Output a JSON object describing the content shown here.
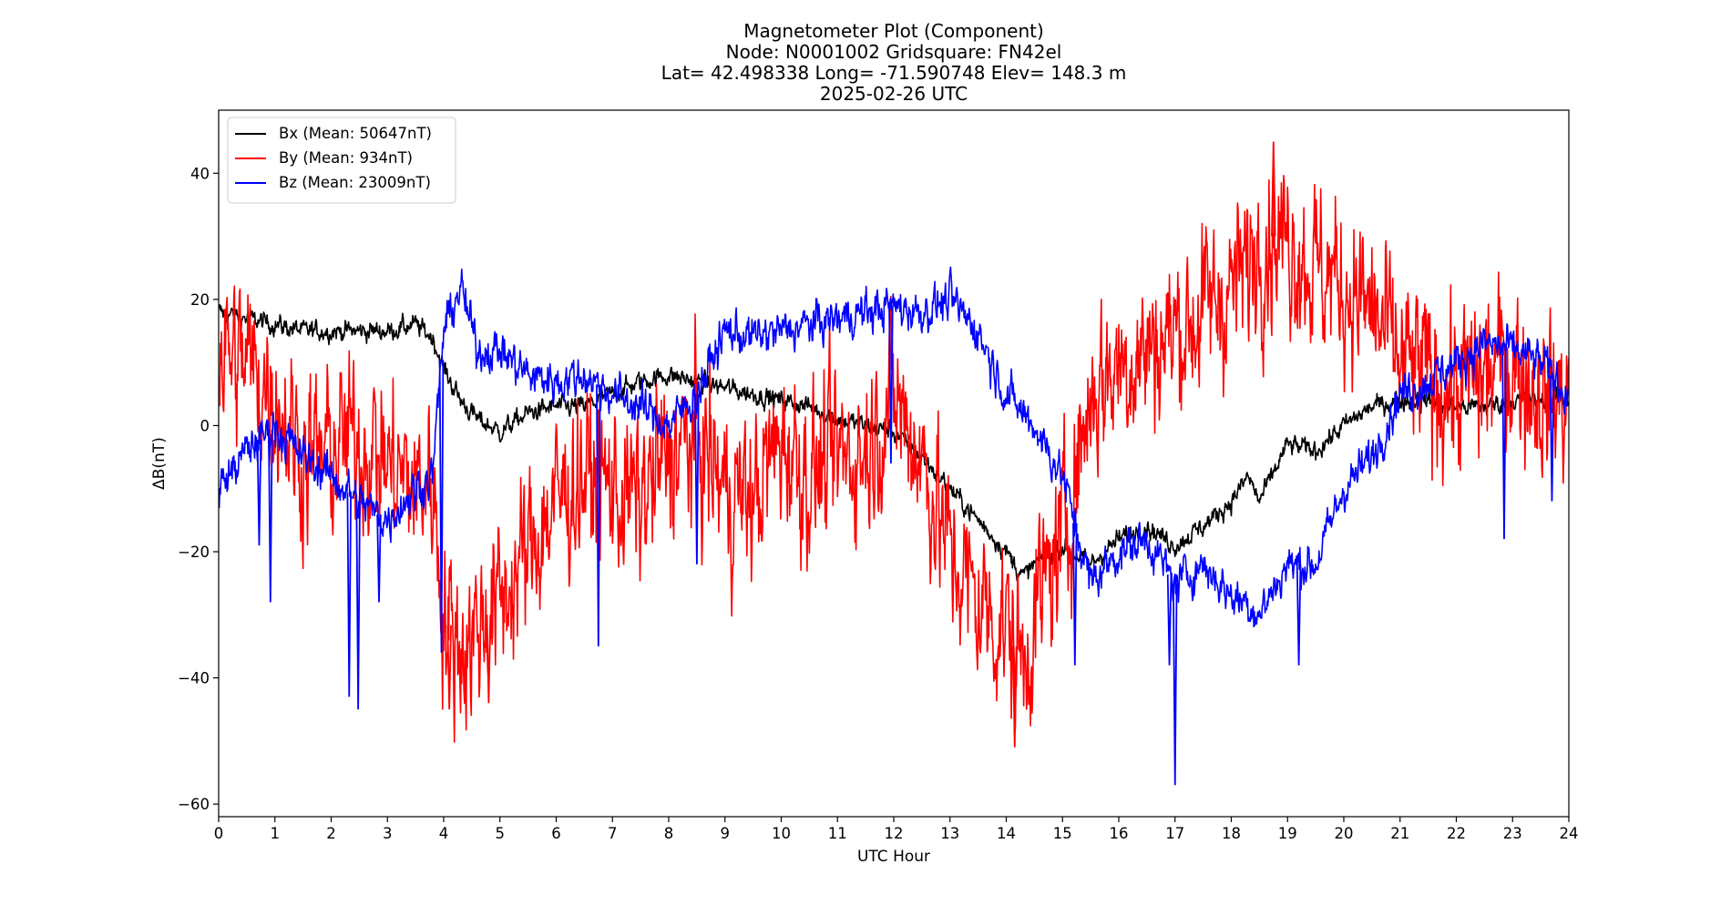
{
  "chart_data": {
    "type": "line",
    "title_lines": [
      "Magnetometer Plot (Component)",
      "Node:  N0001002     Gridsquare:  FN42el",
      "Lat= 42.498338    Long= -71.590748    Elev= 148.3 m",
      "2025-02-26  UTC"
    ],
    "xlabel": "UTC Hour",
    "ylabel": "ΔB(nT)",
    "xlim": [
      0,
      24
    ],
    "ylim": [
      -62,
      50
    ],
    "xticks": [
      0,
      1,
      2,
      3,
      4,
      5,
      6,
      7,
      8,
      9,
      10,
      11,
      12,
      13,
      14,
      15,
      16,
      17,
      18,
      19,
      20,
      21,
      22,
      23,
      24
    ],
    "yticks": [
      -60,
      -40,
      -20,
      0,
      20,
      40
    ],
    "ytick_labels": [
      "−60",
      "−40",
      "−20",
      "0",
      "20",
      "40"
    ],
    "grid": false,
    "legend": {
      "placement": "top-left"
    },
    "series": [
      {
        "name": "Bx (Mean: 50647nT)",
        "color": "#000000",
        "noise": 1.2,
        "x": [
          0,
          0.5,
          1,
          1.5,
          2,
          2.5,
          3,
          3.5,
          3.8,
          4,
          4.3,
          4.6,
          5,
          5.5,
          6,
          6.5,
          7,
          7.5,
          8,
          8.5,
          9,
          9.5,
          10,
          10.5,
          11,
          11.5,
          12,
          12.5,
          13,
          13.5,
          14,
          14.3,
          14.5,
          15,
          15.5,
          16,
          16.5,
          17,
          17.5,
          18,
          18.3,
          18.5,
          19,
          19.5,
          20,
          20.5,
          21,
          21.5,
          22,
          22.5,
          23,
          23.5,
          24
        ],
        "y": [
          18,
          17,
          16,
          15,
          15,
          15,
          15,
          16,
          14,
          9,
          4,
          1,
          -1,
          2,
          3,
          3,
          5,
          7,
          8,
          7,
          6,
          5,
          4,
          3,
          1,
          0,
          -1,
          -5,
          -10,
          -15,
          -20,
          -24,
          -22,
          -19,
          -22,
          -18,
          -16,
          -19,
          -16,
          -12,
          -8,
          -12,
          -3,
          -4,
          0,
          3,
          4,
          4,
          3,
          3,
          4,
          4,
          4
        ]
      },
      {
        "name": "By (Mean: 934nT)",
        "color": "#ff0000",
        "noise": 10,
        "x": [
          0,
          0.5,
          1,
          1.5,
          2,
          2.5,
          3,
          3.5,
          3.8,
          4,
          4.3,
          4.6,
          5,
          5.5,
          6,
          6.5,
          7,
          7.5,
          8,
          8.5,
          9,
          9.5,
          10,
          10.5,
          11,
          11.5,
          12,
          12.5,
          13,
          13.5,
          14,
          14.3,
          14.5,
          15,
          15.5,
          16,
          16.5,
          17,
          17.5,
          18,
          18.3,
          18.5,
          19,
          19.5,
          20,
          20.5,
          21,
          21.5,
          22,
          22.5,
          23,
          23.5,
          24
        ],
        "y": [
          12,
          10,
          5,
          -5,
          -4,
          -2,
          -6,
          -10,
          -8,
          -30,
          -35,
          -32,
          -28,
          -20,
          -12,
          -8,
          -10,
          -12,
          -5,
          -2,
          -10,
          -12,
          -2,
          -8,
          -5,
          -4,
          5,
          -5,
          -20,
          -28,
          -32,
          -38,
          -30,
          -18,
          5,
          10,
          12,
          15,
          18,
          22,
          25,
          30,
          30,
          25,
          22,
          18,
          10,
          8,
          5,
          8,
          10,
          5,
          4
        ]
      },
      {
        "name": "Bz (Mean: 23009nT)",
        "color": "#0000ff",
        "noise": 2.5,
        "x": [
          0,
          0.5,
          1,
          1.5,
          2,
          2.5,
          3,
          3.5,
          3.8,
          4,
          4.3,
          4.6,
          5,
          5.5,
          6,
          6.5,
          7,
          7.5,
          8,
          8.5,
          9,
          9.5,
          10,
          10.5,
          11,
          11.5,
          12,
          12.5,
          13,
          13.5,
          14,
          14.3,
          14.5,
          15,
          15.5,
          16,
          16.5,
          17,
          17.5,
          18,
          18.3,
          18.5,
          19,
          19.5,
          20,
          20.5,
          21,
          21.5,
          22,
          22.5,
          23,
          23.5,
          24
        ],
        "y": [
          -10,
          -4,
          0,
          -5,
          -8,
          -12,
          -15,
          -10,
          -8,
          15,
          22,
          12,
          12,
          8,
          7,
          8,
          5,
          3,
          0,
          5,
          15,
          14,
          15,
          16,
          17,
          18,
          19,
          18,
          20,
          15,
          5,
          2,
          0,
          -8,
          -25,
          -20,
          -18,
          -25,
          -22,
          -27,
          -28,
          -30,
          -22,
          -22,
          -10,
          -5,
          5,
          7,
          10,
          13,
          12,
          10,
          5
        ]
      }
    ],
    "spikes": [
      {
        "series": 2,
        "x": 0.72,
        "y": -19
      },
      {
        "series": 2,
        "x": 0.92,
        "y": -28
      },
      {
        "series": 2,
        "x": 2.32,
        "y": -43
      },
      {
        "series": 2,
        "x": 2.48,
        "y": -45
      },
      {
        "series": 2,
        "x": 2.85,
        "y": -28
      },
      {
        "series": 2,
        "x": 3.96,
        "y": -36
      },
      {
        "series": 2,
        "x": 6.75,
        "y": -35
      },
      {
        "series": 2,
        "x": 8.5,
        "y": -22
      },
      {
        "series": 2,
        "x": 11.95,
        "y": -6
      },
      {
        "series": 2,
        "x": 15.22,
        "y": -38
      },
      {
        "series": 2,
        "x": 16.9,
        "y": -38
      },
      {
        "series": 2,
        "x": 17.0,
        "y": -57
      },
      {
        "series": 2,
        "x": 19.2,
        "y": -38
      },
      {
        "series": 2,
        "x": 22.85,
        "y": -18
      },
      {
        "series": 2,
        "x": 23.7,
        "y": -12
      },
      {
        "series": 1,
        "x": 14.15,
        "y": -51
      },
      {
        "series": 1,
        "x": 4.1,
        "y": -45
      },
      {
        "series": 1,
        "x": 4.8,
        "y": -44
      },
      {
        "series": 1,
        "x": 18.75,
        "y": 45
      }
    ]
  }
}
